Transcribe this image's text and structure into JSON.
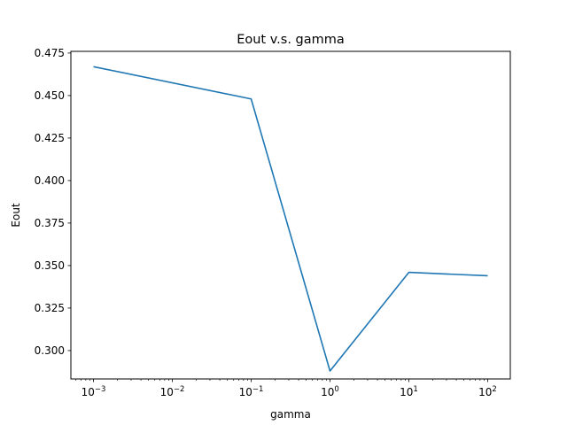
{
  "chart_data": {
    "type": "line",
    "title": "Eout v.s. gamma",
    "xlabel": "gamma",
    "ylabel": "Eout",
    "x_scale": "log",
    "x": [
      0.001,
      0.1,
      1,
      10,
      100
    ],
    "x_tick_labels": [
      {
        "value": 0.001,
        "base": "10",
        "exp": "−3"
      },
      {
        "value": 0.01,
        "base": "10",
        "exp": "−2"
      },
      {
        "value": 0.1,
        "base": "10",
        "exp": "−1"
      },
      {
        "value": 1,
        "base": "10",
        "exp": "0"
      },
      {
        "value": 10,
        "base": "10",
        "exp": "1"
      },
      {
        "value": 100,
        "base": "10",
        "exp": "2"
      }
    ],
    "y_ticks": [
      0.3,
      0.325,
      0.35,
      0.375,
      0.4,
      0.425,
      0.45,
      0.475
    ],
    "y_tick_labels": [
      "0.300",
      "0.325",
      "0.350",
      "0.375",
      "0.400",
      "0.425",
      "0.450",
      "0.475"
    ],
    "xlim": [
      0.000517,
      193.5
    ],
    "ylim": [
      0.2833,
      0.476
    ],
    "grid": false,
    "series": [
      {
        "values": [
          0.467,
          0.448,
          0.288,
          0.346,
          0.344
        ],
        "color": "#1f77b4"
      }
    ]
  }
}
